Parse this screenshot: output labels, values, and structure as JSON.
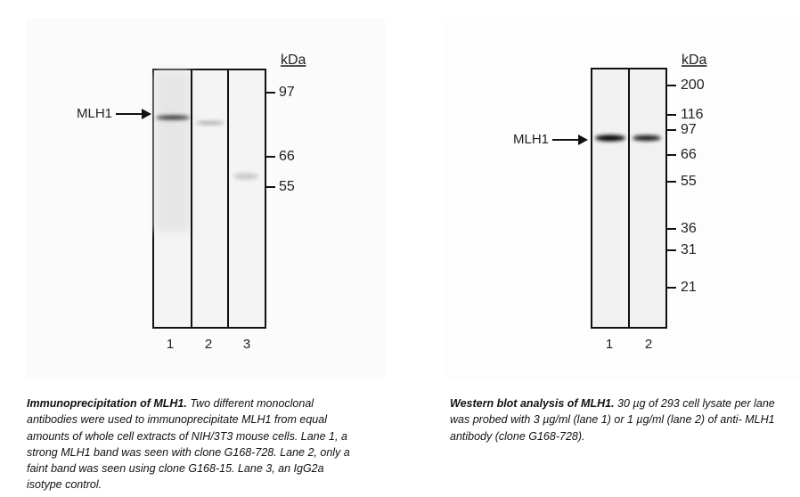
{
  "panels": [
    {
      "kda": "kDa",
      "band_label": "MLH1",
      "markers": [
        "97",
        "66",
        "55"
      ],
      "lanes": [
        "1",
        "2",
        "3"
      ],
      "caption": {
        "bold": "Immunoprecipitation of MLH1.",
        "text": " Two different monoclonal antibodies were used to immunoprecipitate MLH1 from equal amounts of whole cell extracts of NIH/3T3 mouse cells. Lane 1, a strong MLH1 band was seen with clone G168-728. Lane 2, only a faint band was seen using clone G168-15. Lane 3, an IgG2a isotype control."
      }
    },
    {
      "kda": "kDa",
      "band_label": "MLH1",
      "markers": [
        "200",
        "116",
        "97",
        "66",
        "55",
        "36",
        "31",
        "21"
      ],
      "lanes": [
        "1",
        "2"
      ],
      "caption": {
        "bold": "Western blot analysis of MLH1.",
        "text": " 30 µg of 293 cell lysate per lane was probed with 3 µg/ml (lane 1) or 1 µg/ml (lane 2) of anti- MLH1 antibody (clone G168-728)."
      }
    }
  ]
}
